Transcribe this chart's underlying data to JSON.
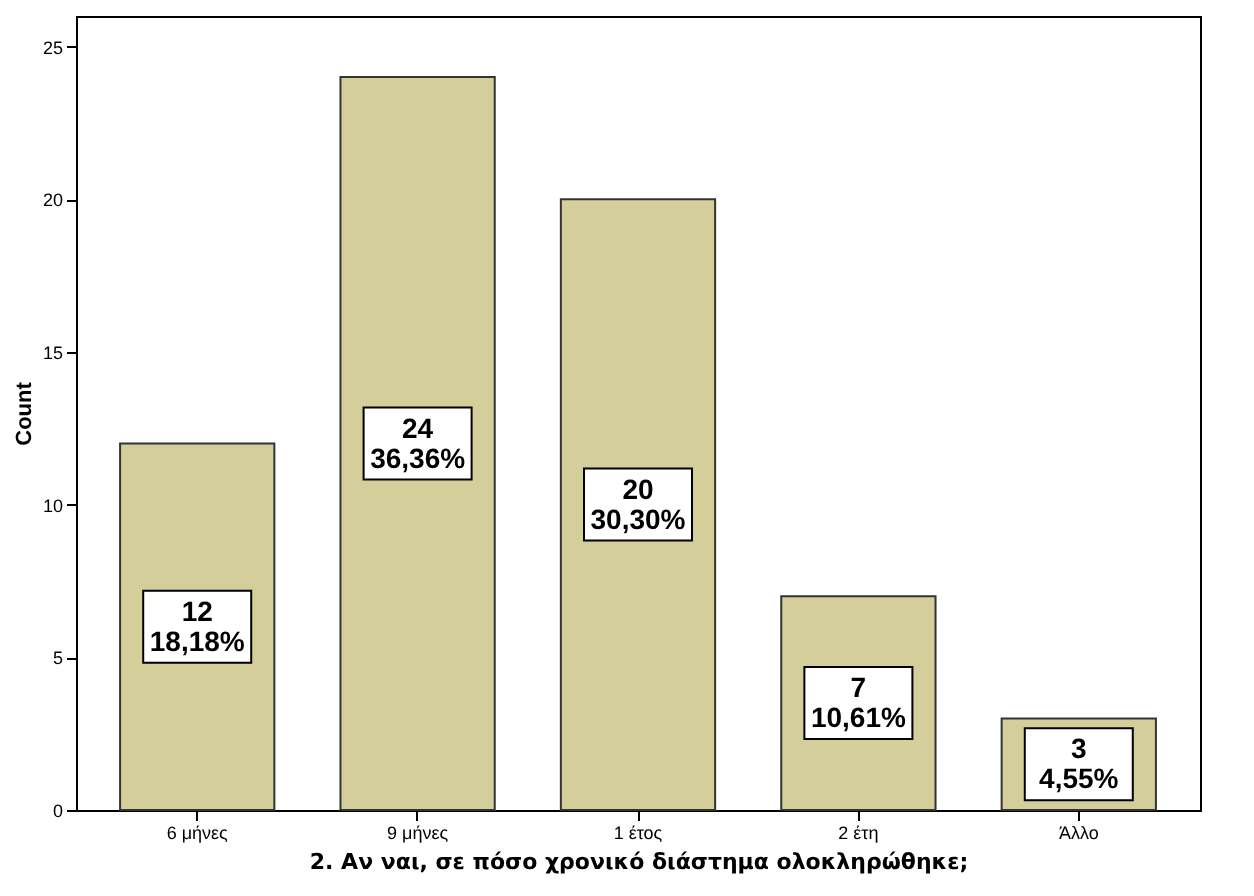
{
  "chart_data": {
    "type": "bar",
    "xlabel": "2. Αν ναι,  σε πόσο χρονικό διάστημα ολοκληρώθηκε;",
    "ylabel": "Count",
    "categories": [
      "6 μήνες",
      "9 μήνες",
      "1 έτος",
      "2 έτη",
      "Άλλο"
    ],
    "values": [
      12,
      24,
      20,
      7,
      3
    ],
    "color": "#d3ce9a",
    "value_labels": [
      "12\n18,18%",
      "24\n36,36%",
      "20\n30,30%",
      "7\n10,61%",
      "3\n4,55%"
    ],
    "ylim": [
      0,
      26
    ],
    "yticks": [
      0,
      5,
      10,
      15,
      20,
      25
    ],
    "grid": false
  }
}
